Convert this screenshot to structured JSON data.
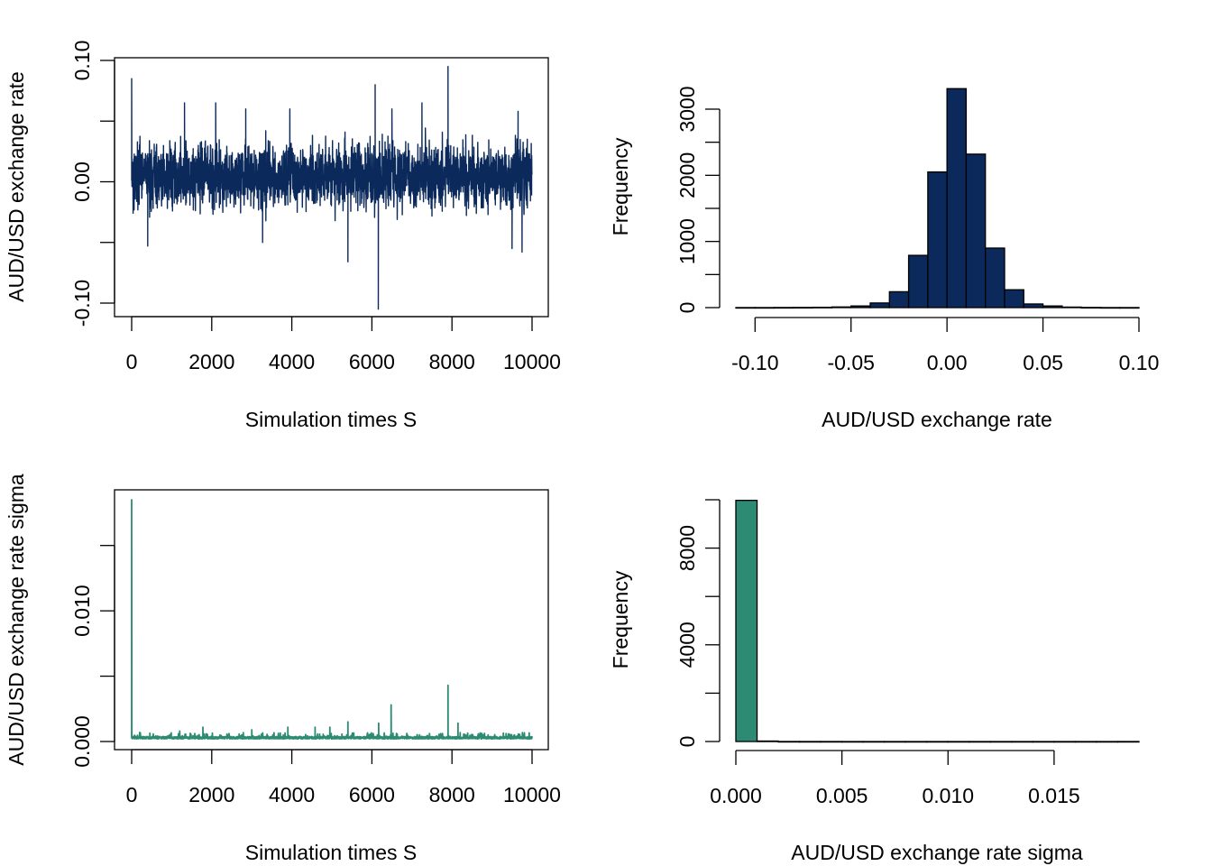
{
  "colors": {
    "navy": "#0b2a5b",
    "teal": "#2e8b73",
    "axis": "#000000",
    "background": "#ffffff"
  },
  "chart_data": [
    {
      "id": "trace_rate",
      "type": "line",
      "title": "",
      "xlabel": "Simulation times S",
      "ylabel": "AUD/USD exchange rate",
      "xlim": [
        0,
        10000
      ],
      "ylim": [
        -0.1,
        0.1
      ],
      "xticks": [
        0,
        2000,
        4000,
        6000,
        8000,
        10000
      ],
      "xtick_labels": [
        "0",
        "2000",
        "4000",
        "6000",
        "8000",
        "10000"
      ],
      "yticks": [
        -0.1,
        -0.05,
        0,
        0.05,
        0.1
      ],
      "ytick_labels": [
        "-0.10",
        "",
        "0.00",
        "",
        "0.10"
      ],
      "color": "#0b2a5b",
      "trace": {
        "n": 10000,
        "center": 0.005,
        "typical_low": -0.02,
        "typical_high": 0.03
      },
      "spikes": [
        {
          "x": 0,
          "y": 0.085
        },
        {
          "x": 1320,
          "y": 0.065
        },
        {
          "x": 2100,
          "y": 0.065
        },
        {
          "x": 2850,
          "y": 0.06
        },
        {
          "x": 3950,
          "y": 0.06
        },
        {
          "x": 5400,
          "y": -0.066
        },
        {
          "x": 6080,
          "y": 0.08
        },
        {
          "x": 6160,
          "y": -0.105
        },
        {
          "x": 6500,
          "y": 0.06
        },
        {
          "x": 7250,
          "y": 0.065
        },
        {
          "x": 7900,
          "y": 0.095
        },
        {
          "x": 9650,
          "y": 0.058
        },
        {
          "x": 9500,
          "y": -0.055
        },
        {
          "x": 9750,
          "y": -0.058
        },
        {
          "x": 400,
          "y": -0.053
        },
        {
          "x": 3270,
          "y": -0.05
        }
      ]
    },
    {
      "id": "hist_rate",
      "type": "bar",
      "title": "",
      "xlabel": "AUD/USD exchange rate",
      "ylabel": "Frequency",
      "xlim": [
        -0.11,
        0.1
      ],
      "ylim": [
        0,
        3300
      ],
      "xticks": [
        -0.1,
        -0.05,
        0,
        0.05,
        0.1
      ],
      "xtick_labels": [
        "-0.10",
        "-0.05",
        "0.00",
        "0.05",
        "0.10"
      ],
      "yticks": [
        0,
        500,
        1000,
        1500,
        2000,
        2500,
        3000
      ],
      "ytick_labels": [
        "0",
        "",
        "1000",
        "",
        "2000",
        "",
        "3000"
      ],
      "color": "#0b2a5b",
      "bin_edges": [
        -0.11,
        -0.1,
        -0.09,
        -0.08,
        -0.07,
        -0.06,
        -0.05,
        -0.04,
        -0.03,
        -0.02,
        -0.01,
        0,
        0.01,
        0.02,
        0.03,
        0.04,
        0.05,
        0.06,
        0.07,
        0.08,
        0.09,
        0.1
      ],
      "values": [
        1,
        1,
        2,
        3,
        5,
        10,
        25,
        70,
        240,
        790,
        2050,
        3310,
        2320,
        900,
        270,
        55,
        25,
        8,
        3,
        1,
        1
      ]
    },
    {
      "id": "trace_sigma",
      "type": "line",
      "title": "",
      "xlabel": "Simulation times S",
      "ylabel": "AUD/USD exchange rate sigma",
      "xlim": [
        0,
        10000
      ],
      "ylim": [
        0,
        0.0185
      ],
      "xticks": [
        0,
        2000,
        4000,
        6000,
        8000,
        10000
      ],
      "xtick_labels": [
        "0",
        "2000",
        "4000",
        "6000",
        "8000",
        "10000"
      ],
      "yticks": [
        0,
        0.005,
        0.01,
        0.015
      ],
      "ytick_labels": [
        "0.000",
        "",
        "0.010",
        ""
      ],
      "color": "#2e8b73",
      "trace": {
        "n": 10000,
        "baseline": 0.0002,
        "noise": 0.0003
      },
      "spikes": [
        {
          "x": 0,
          "y": 0.0185
        },
        {
          "x": 200,
          "y": 0.0007
        },
        {
          "x": 1200,
          "y": 0.0008
        },
        {
          "x": 1780,
          "y": 0.0011
        },
        {
          "x": 3000,
          "y": 0.0009
        },
        {
          "x": 3900,
          "y": 0.0011
        },
        {
          "x": 4580,
          "y": 0.0011
        },
        {
          "x": 4950,
          "y": 0.0011
        },
        {
          "x": 5400,
          "y": 0.0015
        },
        {
          "x": 6170,
          "y": 0.0014
        },
        {
          "x": 6480,
          "y": 0.0028
        },
        {
          "x": 7900,
          "y": 0.0043
        },
        {
          "x": 8150,
          "y": 0.0014
        }
      ]
    },
    {
      "id": "hist_sigma",
      "type": "bar",
      "title": "",
      "xlabel": "AUD/USD exchange rate sigma",
      "ylabel": "Frequency",
      "xlim": [
        0,
        0.019
      ],
      "ylim": [
        0,
        10000
      ],
      "xticks": [
        0,
        0.005,
        0.01,
        0.015
      ],
      "xtick_labels": [
        "0.000",
        "0.005",
        "0.010",
        "0.015"
      ],
      "yticks": [
        0,
        2000,
        4000,
        6000,
        8000,
        10000
      ],
      "ytick_labels": [
        "0",
        "",
        "4000",
        "",
        "8000",
        ""
      ],
      "color": "#2e8b73",
      "bin_edges": [
        0,
        0.001,
        0.002,
        0.003,
        0.004,
        0.005,
        0.006,
        0.007,
        0.008,
        0.009,
        0.01,
        0.011,
        0.012,
        0.013,
        0.014,
        0.015,
        0.016,
        0.017,
        0.018,
        0.019
      ],
      "values": [
        9975,
        20,
        2,
        1,
        1,
        0,
        0,
        0,
        0,
        0,
        0,
        0,
        0,
        0,
        0,
        0,
        0,
        0,
        1
      ]
    }
  ]
}
